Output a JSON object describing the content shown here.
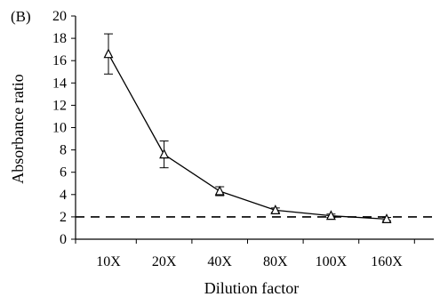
{
  "chart_data": {
    "type": "line",
    "panel_label": "(B)",
    "xlabel": "Dilution factor",
    "ylabel": "Absorbance ratio",
    "categories": [
      "10X",
      "20X",
      "40X",
      "80X",
      "100X",
      "160X"
    ],
    "series": [
      {
        "values": [
          16.6,
          7.6,
          4.3,
          2.6,
          2.1,
          1.8
        ],
        "error": [
          1.8,
          1.2,
          0.4,
          0.2,
          0.15,
          0.15
        ],
        "marker": "triangle-open",
        "color": "#000000"
      }
    ],
    "reference_line": {
      "y": 2,
      "style": "dashed"
    },
    "ylim": [
      0,
      20
    ],
    "yticks": [
      0,
      2,
      4,
      6,
      8,
      10,
      12,
      14,
      16,
      18,
      20
    ],
    "grid": false
  }
}
